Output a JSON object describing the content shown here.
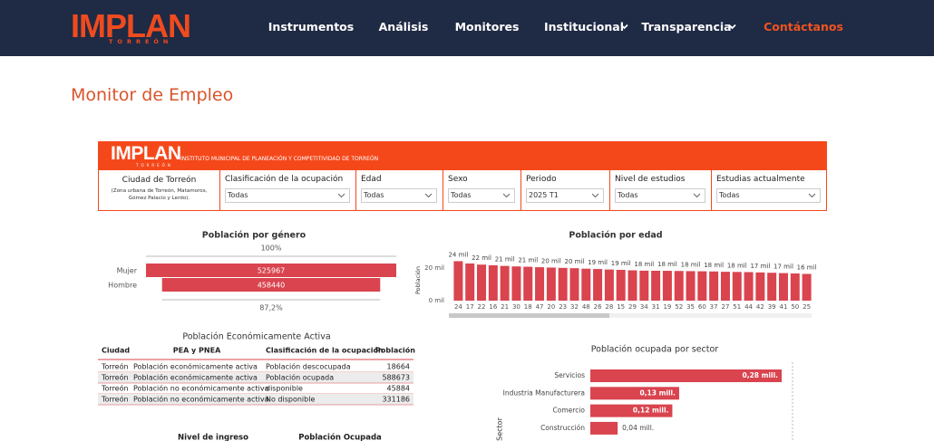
{
  "nav": {
    "logo": "IMPLAN",
    "logo_sub": "TORREÓN",
    "items": [
      "Instrumentos",
      "Análisis",
      "Monitores",
      "Institucional",
      "Transparencia"
    ],
    "contact": "Contáctanos"
  },
  "page_title": "Monitor de Empleo",
  "dashboard": {
    "logo": "IMPLAN",
    "logo_sub": "TORREÓN",
    "institute": "INSTITUTO MUNICIPAL DE PLANEACIÓN Y COMPETITIVIDAD DE TORREÓN",
    "city": {
      "title": "Ciudad de Torreón",
      "note": "(Zona urbana de Torreón, Matamoros, Gómez Palacio y Lerdo)."
    },
    "filters": [
      {
        "label": "Clasificación de la ocupación",
        "value": "Todas"
      },
      {
        "label": "Edad",
        "value": "Todas"
      },
      {
        "label": "Sexo",
        "value": "Todas"
      },
      {
        "label": "Periodo",
        "value": "2025 T1"
      },
      {
        "label": "Nivel de estudios",
        "value": "Todas"
      },
      {
        "label": "Estudias actualmente",
        "value": "Todas"
      }
    ],
    "gender_chart": {
      "type": "funnel",
      "title": "Población por género",
      "categories": [
        "Mujer",
        "Hombre"
      ],
      "values": [
        525967,
        458440
      ],
      "top_label": "100%",
      "bottom_label": "87,2%",
      "color": "#d9444f"
    },
    "age_chart": {
      "type": "bar",
      "title": "Población por edad",
      "y_label": "Población",
      "categories": [
        "24",
        "17",
        "22",
        "16",
        "21",
        "30",
        "18",
        "47",
        "20",
        "23",
        "32",
        "48",
        "26",
        "28",
        "15",
        "29",
        "34",
        "31",
        "19",
        "52",
        "35",
        "60",
        "37",
        "27",
        "51",
        "44",
        "42",
        "39",
        "41",
        "50",
        "25"
      ],
      "values": [
        24.2,
        22.8,
        22.1,
        21.7,
        21.3,
        21.0,
        20.8,
        20.5,
        20.3,
        20.1,
        19.9,
        19.6,
        19.4,
        19.1,
        18.9,
        18.6,
        18.4,
        18.35,
        18.3,
        18.2,
        18.1,
        18.0,
        17.9,
        17.7,
        17.6,
        17.5,
        17.3,
        17.1,
        16.9,
        16.7,
        16.4
      ],
      "value_labels": [
        "24 mil",
        null,
        "22 mil",
        null,
        "21 mil",
        null,
        "21 mil",
        null,
        "20 mil",
        null,
        "20 mil",
        null,
        "19 mil",
        null,
        "19 mil",
        null,
        "18 mil",
        null,
        "18 mil",
        null,
        "18 mil",
        null,
        "18 mil",
        null,
        "18 mil",
        null,
        "17 mil",
        null,
        "17 mil",
        null,
        "16 mil"
      ],
      "ylim": [
        0,
        25
      ],
      "yticks": [
        {
          "value": 0,
          "label": "0 mil"
        },
        {
          "value": 20,
          "label": "20 mil"
        }
      ],
      "color": "#d9444f"
    },
    "pea_table": {
      "title": "Población Económicamente Activa",
      "columns": [
        "Ciudad",
        "PEA y PNEA",
        "Clasificación de la ocupación",
        "Población"
      ],
      "rows": [
        [
          "Torreón",
          "Población económicamente activa",
          "Población descocupada",
          "18664"
        ],
        [
          "Torreón",
          "Población económicamente activa",
          "Población ocupada",
          "588673"
        ],
        [
          "Torreón",
          "Población no económicamente activa",
          "disponible",
          "45884"
        ],
        [
          "Torreón",
          "Población no económicamente activa",
          "No disponible",
          "331186"
        ]
      ]
    },
    "sector_chart": {
      "type": "hbar",
      "title": "Población ocupada por sector",
      "y_label": "Sector",
      "categories": [
        "Servicios",
        "Industria Manufacturera",
        "Comercio",
        "Construcción"
      ],
      "values": [
        0.28,
        0.13,
        0.12,
        0.04
      ],
      "value_labels": [
        "0,28 mill.",
        "0,13 mill.",
        "0,12 mill.",
        "0,04 mill."
      ],
      "color": "#d9444f"
    },
    "bottom_headers": [
      "Nivel de ingreso",
      "Población Ocupada"
    ]
  }
}
